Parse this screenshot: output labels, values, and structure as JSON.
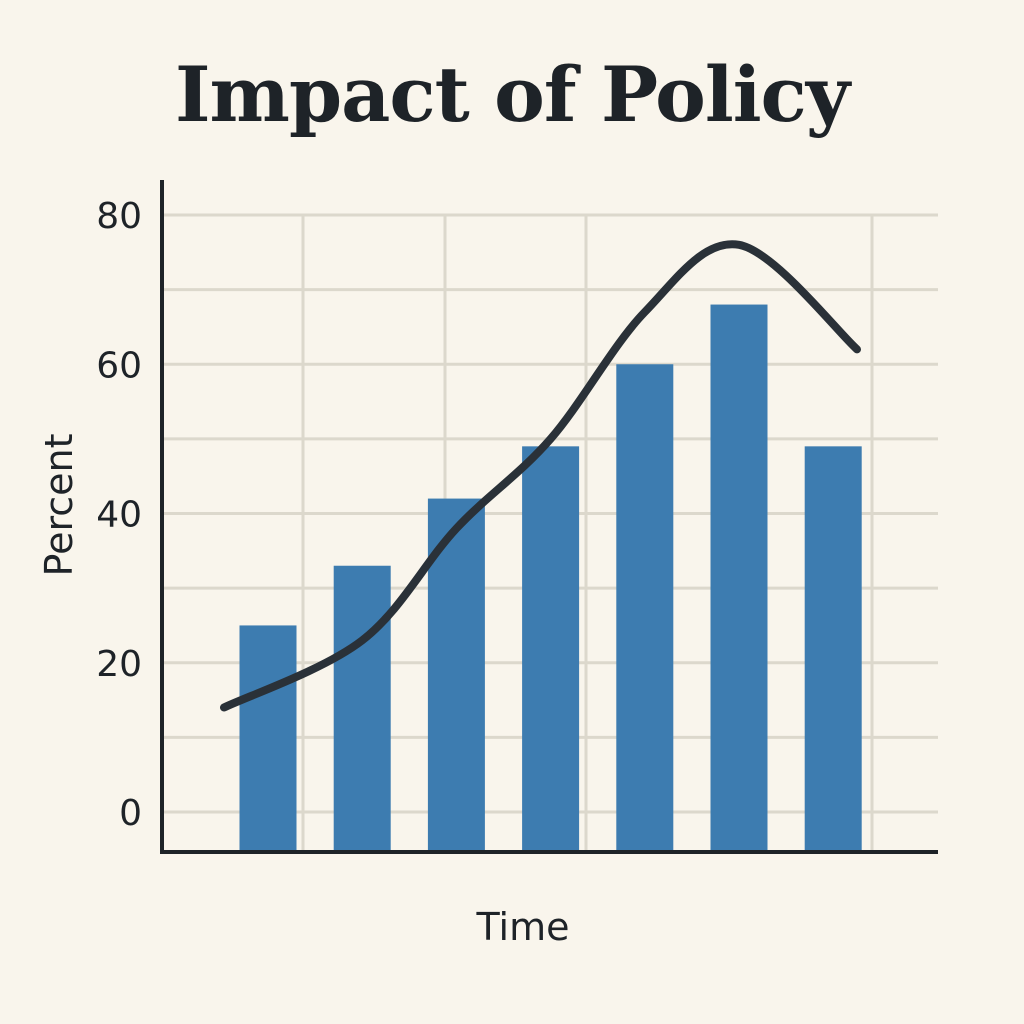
{
  "chart_data": {
    "type": "bar",
    "title": "Impact of Policy",
    "xlabel": "Time",
    "ylabel": "Percent",
    "ylim": [
      0,
      80
    ],
    "y_ticks": [
      0,
      20,
      40,
      60,
      80
    ],
    "grid": true,
    "bar_color": "#3d7cb0",
    "line_color": "#2a3138",
    "bars": [
      25,
      33,
      42,
      49,
      60,
      68,
      49
    ],
    "trend_line": [
      14,
      23,
      38,
      50,
      67,
      76,
      62
    ]
  }
}
